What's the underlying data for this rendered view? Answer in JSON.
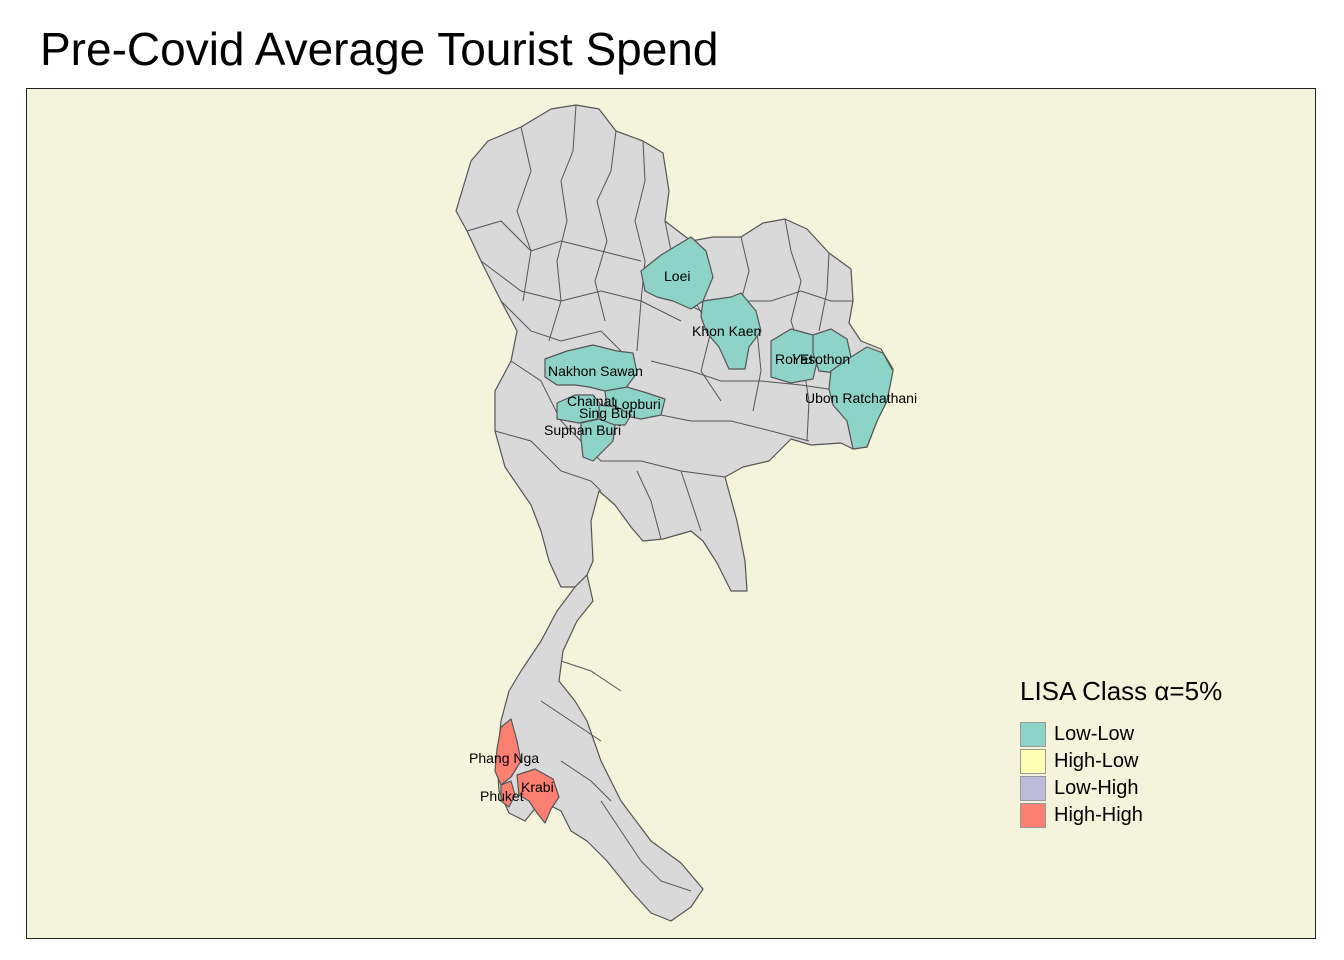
{
  "title": "Pre-Covid Average Tourist Spend",
  "colors": {
    "background": "#f4f4dc",
    "default_province": "#d9d9d9",
    "low_low": "#8dd3c7",
    "high_low": "#ffffb3",
    "low_high": "#bebada",
    "high_high": "#fb8072"
  },
  "legend": {
    "title": "LISA Class α=5%",
    "items": [
      {
        "label": "Low-Low",
        "color": "#8dd3c7"
      },
      {
        "label": "High-Low",
        "color": "#ffffb3"
      },
      {
        "label": "Low-High",
        "color": "#bebada"
      },
      {
        "label": "High-High",
        "color": "#fb8072"
      }
    ]
  },
  "provinces": {
    "loei": "Loei",
    "khon_kaen": "Khon Kaen",
    "roi_et": "Roi Et",
    "yasothon": "Yasothon",
    "ubon_ratchathani": "Ubon Ratchathani",
    "nakhon_sawan": "Nakhon Sawan",
    "chainat": "Chainat",
    "lopburi": "Lopburi",
    "sing_buri": "Sing Buri",
    "suphan_buri": "Suphan Buri",
    "phang_nga": "Phang Nga",
    "krabi": "Krabi",
    "phuket": "Phuket"
  }
}
